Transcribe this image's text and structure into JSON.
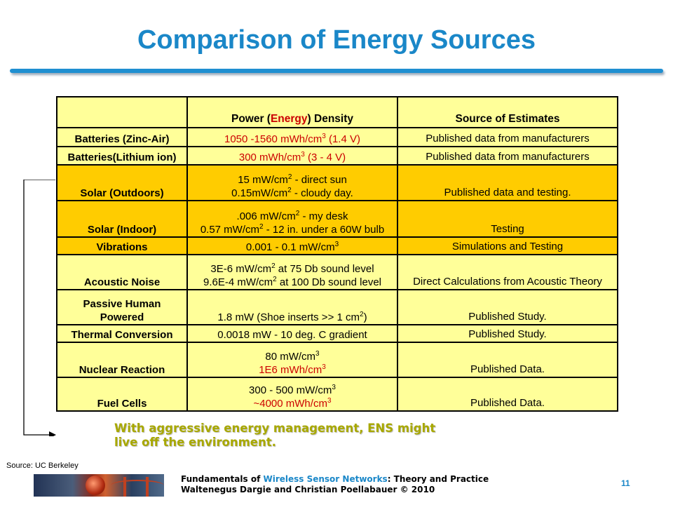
{
  "slide": {
    "title": "Comparison of Energy Sources",
    "table": {
      "header": {
        "source": "",
        "density_prefix": "Power (",
        "density_highlight": "Energy",
        "density_suffix": ") Density",
        "estimates": "Source of Estimates"
      },
      "rows": [
        {
          "source": [
            "Batteries (Zinc-Air)"
          ],
          "density": [
            "1050 -1560 mWh/cm|3| (1.4 V)"
          ],
          "density_red": [
            true
          ],
          "estimates": "Published data from manufacturers"
        },
        {
          "source": [
            "Batteries(Lithium ion)"
          ],
          "density": [
            "300 mWh/cm|3| (3 - 4 V)"
          ],
          "density_red": [
            true
          ],
          "estimates": "Published data from manufacturers"
        },
        {
          "source": [
            "Solar (Outdoors)"
          ],
          "density": [
            "15 mW/cm|2| - direct sun",
            "0.15mW/cm|2| - cloudy day."
          ],
          "density_red": [
            false,
            false
          ],
          "estimates": "Published data and testing."
        },
        {
          "source": [
            "Solar (Indoor)"
          ],
          "density": [
            ".006 mW/cm|2| - my desk",
            "0.57 mW/cm|2| - 12 in. under a 60W bulb"
          ],
          "density_red": [
            false,
            false
          ],
          "estimates": "Testing"
        },
        {
          "source": [
            "Vibrations"
          ],
          "density": [
            "0.001 - 0.1 mW/cm|3|"
          ],
          "density_red": [
            false
          ],
          "estimates": "Simulations and Testing"
        },
        {
          "source": [
            "Acoustic Noise"
          ],
          "density": [
            "3E-6 mW/cm|2| at 75 Db sound level",
            "9.6E-4 mW/cm|2| at 100 Db sound level"
          ],
          "density_red": [
            false,
            false
          ],
          "estimates": "Direct Calculations from Acoustic Theory"
        },
        {
          "source": [
            "Passive Human",
            "Powered"
          ],
          "density": [
            "1.8 mW  (Shoe inserts >> 1 cm|2|)"
          ],
          "density_red": [
            false
          ],
          "estimates": "Published Study."
        },
        {
          "source": [
            "Thermal Conversion"
          ],
          "density": [
            "0.0018 mW - 10 deg. C gradient"
          ],
          "density_red": [
            false
          ],
          "estimates": "Published Study."
        },
        {
          "source": [
            "Nuclear Reaction"
          ],
          "density": [
            "80 mW/cm|3|",
            "1E6 mWh/cm|3|"
          ],
          "density_red": [
            false,
            true
          ],
          "estimates": "Published Data."
        },
        {
          "source": [
            "Fuel Cells"
          ],
          "density": [
            "300 - 500 mW/cm|3|",
            "~4000 mWh/cm|3|"
          ],
          "density_red": [
            false,
            true
          ],
          "estimates": "Published Data."
        }
      ]
    },
    "callout": {
      "line1": "With aggressive energy management, ENS might",
      "line2": "live off the environment."
    },
    "source_note": "Source: UC Berkeley",
    "footer": {
      "line1_prefix": "Fundamentals of ",
      "line1_highlight": "Wireless Sensor Networks",
      "line1_suffix": ": Theory and Practice",
      "line2": "Waltenegus Dargie and Christian Poellabauer © 2010"
    },
    "page_number": "11"
  },
  "colors": {
    "title": "#1a87c8",
    "cell_yellow": "#ffff99",
    "cell_orange": "#ffcc00",
    "red_text": "#cc0000",
    "callout": "#a8a800"
  }
}
